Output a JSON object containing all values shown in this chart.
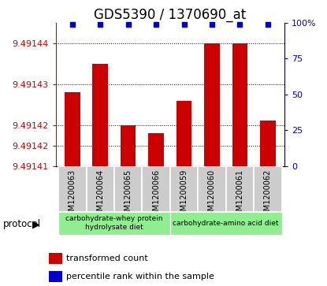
{
  "title": "GDS5390 / 1370690_at",
  "samples": [
    "GSM1200063",
    "GSM1200064",
    "GSM1200065",
    "GSM1200066",
    "GSM1200059",
    "GSM1200060",
    "GSM1200061",
    "GSM1200062"
  ],
  "bar_values": [
    9.491428,
    9.491435,
    9.49142,
    9.491418,
    9.491426,
    9.49144,
    9.49144,
    9.491421
  ],
  "percentile_values": [
    99,
    99,
    99,
    99,
    99,
    99,
    99,
    99
  ],
  "ymin": 9.49141,
  "ymax": 9.491445,
  "ytick_vals_left": [
    9.49141,
    9.491415,
    9.49142,
    9.49143,
    9.49144
  ],
  "ytick_labels_left": [
    "9.49141",
    "9.49142",
    "9.49142",
    "9.49143",
    "9.49144"
  ],
  "ytick_vals_right": [
    0,
    25,
    50,
    75,
    100
  ],
  "ytick_labels_right": [
    "0",
    "25",
    "50",
    "75",
    "100%"
  ],
  "bar_color": "#cc0000",
  "dot_color": "#0000cc",
  "bg_plot": "#ffffff",
  "bg_sample": "#cccccc",
  "bg_group": "#90ee90",
  "group1_label": "carbohydrate-whey protein\nhydrolysate diet",
  "group2_label": "carbohydrate-amino acid diet",
  "group1_indices": [
    0,
    1,
    2,
    3
  ],
  "group2_indices": [
    4,
    5,
    6,
    7
  ],
  "protocol_label": "protocol",
  "legend_bar_label": "transformed count",
  "legend_dot_label": "percentile rank within the sample",
  "title_fontsize": 12,
  "tick_fontsize": 8,
  "sample_fontsize": 7,
  "legend_fontsize": 8
}
